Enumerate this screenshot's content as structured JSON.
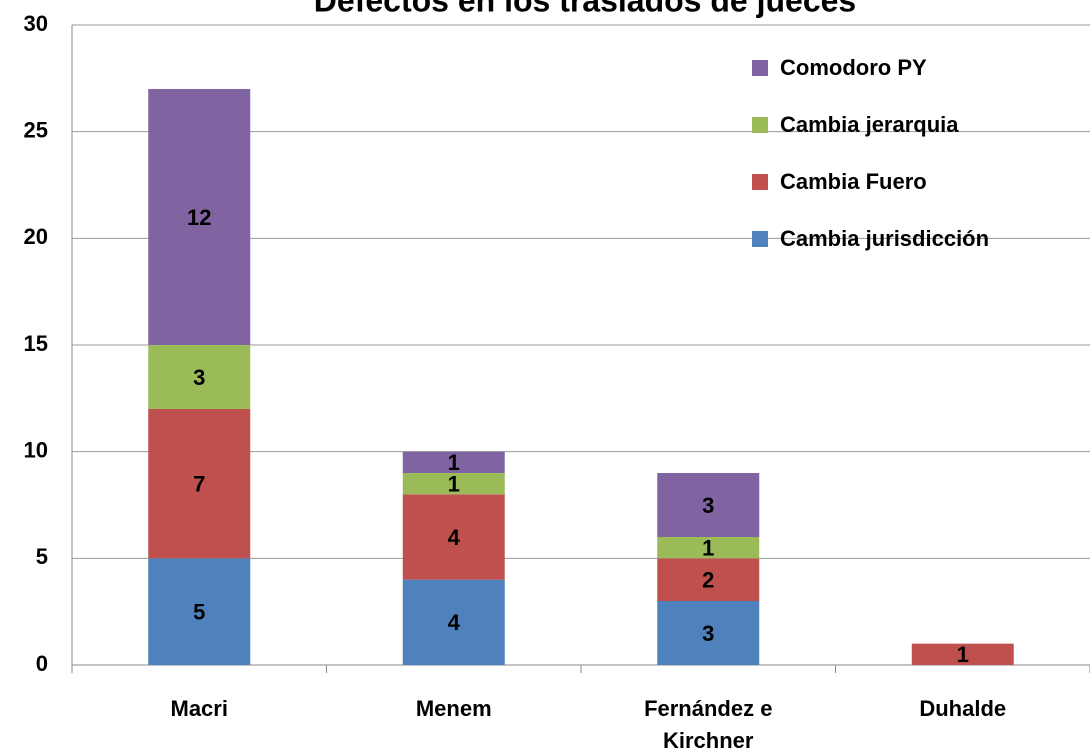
{
  "chart_data": {
    "type": "stacked_bar",
    "title": "Defectos en los traslados de jueces",
    "categories": [
      "Macri",
      "Menem",
      "Fernández e Kirchner",
      "Duhalde"
    ],
    "series": [
      {
        "name": "Cambia jurisdicción",
        "color": "#4f81bd",
        "values": [
          5,
          4,
          3,
          null
        ]
      },
      {
        "name": "Cambia Fuero",
        "color": "#c0504d",
        "values": [
          7,
          4,
          2,
          1
        ]
      },
      {
        "name": "Cambia jerarquia",
        "color": "#9bbb59",
        "values": [
          3,
          1,
          1,
          null
        ]
      },
      {
        "name": "Comodoro PY",
        "color": "#8064a2",
        "values": [
          12,
          1,
          3,
          null
        ]
      }
    ],
    "ylim": [
      0,
      30
    ],
    "yticks": [
      0,
      5,
      10,
      15,
      20,
      25,
      30
    ],
    "grid": true,
    "legend": "upper right"
  }
}
